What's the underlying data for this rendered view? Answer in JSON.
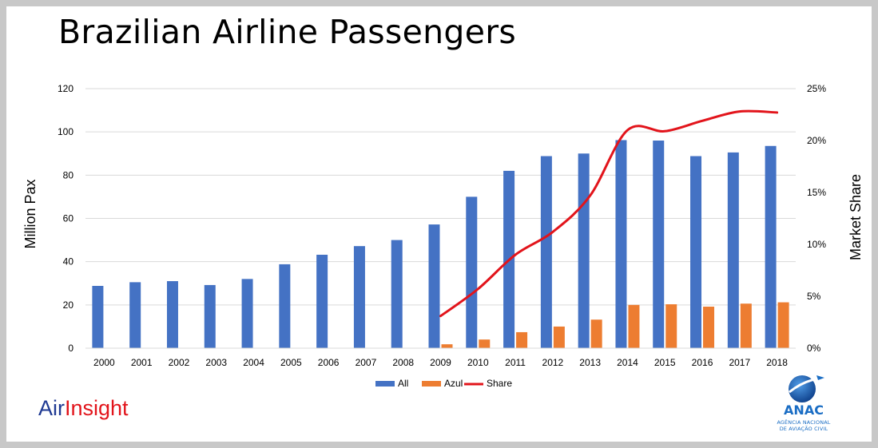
{
  "title": "Brazilian Airline Passengers",
  "brand": {
    "air": "Air",
    "insight": "Insight"
  },
  "logo": {
    "name": "ANAC",
    "line1": "AGÊNCIA NACIONAL",
    "line2": "DE AVIAÇÃO CIVIL"
  },
  "chart_data": {
    "type": "bar",
    "title": "Brazilian Airline Passengers",
    "categories": [
      "2000",
      "2001",
      "2002",
      "2003",
      "2004",
      "2005",
      "2006",
      "2007",
      "2008",
      "2009",
      "2010",
      "2011",
      "2012",
      "2013",
      "2014",
      "2015",
      "2016",
      "2017",
      "2018"
    ],
    "series": [
      {
        "name": "All",
        "type": "bar",
        "axis": "left",
        "color": "#4472c4",
        "values": [
          28.8,
          30.5,
          31,
          29.2,
          32,
          38.8,
          43.2,
          47.2,
          50,
          57.2,
          70,
          82,
          88.8,
          90,
          96.2,
          96,
          88.8,
          90.5,
          93.5
        ]
      },
      {
        "name": "Azul",
        "type": "bar",
        "axis": "left",
        "color": "#ed7d31",
        "values": [
          null,
          null,
          null,
          null,
          null,
          null,
          null,
          null,
          0,
          1.8,
          4,
          7.4,
          10,
          13.2,
          20,
          20.3,
          19.2,
          20.6,
          21.2
        ]
      },
      {
        "name": "Share",
        "type": "line",
        "axis": "right",
        "color": "#e2141b",
        "values": [
          null,
          null,
          null,
          null,
          null,
          null,
          null,
          null,
          null,
          3.1,
          5.7,
          9.0,
          11.2,
          14.7,
          21.0,
          20.9,
          21.9,
          22.8,
          22.7
        ]
      }
    ],
    "ylabel": "Million Pax",
    "ylim": [
      0,
      120
    ],
    "yticks": [
      0,
      20,
      40,
      60,
      80,
      100,
      120
    ],
    "y2label": "Market Share",
    "y2lim": [
      0,
      25
    ],
    "y2ticks": [
      "0%",
      "5%",
      "10%",
      "15%",
      "20%",
      "25%"
    ],
    "grid": true,
    "legend": "bottom-center"
  }
}
